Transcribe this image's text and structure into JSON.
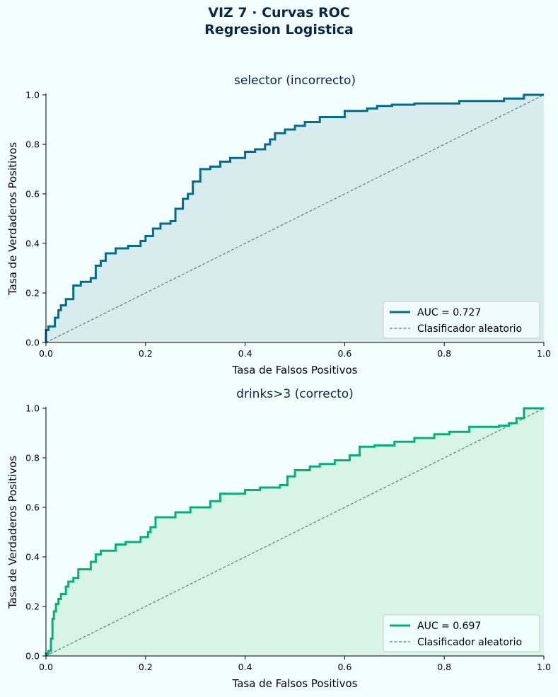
{
  "figure": {
    "title_line1": "VIZ 7 · Curvas ROC",
    "title_line2": "Regresion Logistica"
  },
  "chart_data": [
    {
      "type": "line",
      "title": "selector (incorrecto)",
      "xlabel": "Tasa de Falsos Positivos",
      "ylabel": "Tasa de Verdaderos Positivos",
      "xlim": [
        0,
        1
      ],
      "ylim": [
        0,
        1
      ],
      "xticks": [
        "0.0",
        "0.2",
        "0.4",
        "0.6",
        "0.8",
        "1.0"
      ],
      "yticks": [
        "0.0",
        "0.2",
        "0.4",
        "0.6",
        "0.8",
        "1.0"
      ],
      "color": "#006d8f",
      "fill_color": "#d9eced",
      "grid": false,
      "legend_position": "lower right",
      "series": [
        {
          "name": "AUC = 0.727",
          "style": "step",
          "x": [
            0,
            0,
            0.005,
            0.005,
            0.018,
            0.018,
            0.025,
            0.025,
            0.03,
            0.03,
            0.04,
            0.04,
            0.055,
            0.055,
            0.07,
            0.07,
            0.09,
            0.09,
            0.1,
            0.1,
            0.11,
            0.11,
            0.12,
            0.12,
            0.14,
            0.14,
            0.165,
            0.165,
            0.19,
            0.19,
            0.2,
            0.2,
            0.215,
            0.215,
            0.23,
            0.23,
            0.25,
            0.25,
            0.26,
            0.26,
            0.275,
            0.275,
            0.285,
            0.285,
            0.295,
            0.295,
            0.31,
            0.31,
            0.33,
            0.33,
            0.35,
            0.35,
            0.37,
            0.37,
            0.4,
            0.4,
            0.42,
            0.42,
            0.44,
            0.44,
            0.45,
            0.45,
            0.46,
            0.46,
            0.48,
            0.48,
            0.5,
            0.5,
            0.52,
            0.52,
            0.55,
            0.55,
            0.6,
            0.6,
            0.645,
            0.645,
            0.665,
            0.665,
            0.695,
            0.695,
            0.74,
            0.74,
            0.83,
            0.83,
            0.92,
            0.92,
            0.96,
            0.96,
            1.0
          ],
          "y": [
            0,
            0.05,
            0.05,
            0.065,
            0.065,
            0.1,
            0.1,
            0.13,
            0.13,
            0.15,
            0.15,
            0.175,
            0.175,
            0.23,
            0.23,
            0.245,
            0.245,
            0.26,
            0.26,
            0.31,
            0.31,
            0.33,
            0.33,
            0.36,
            0.36,
            0.38,
            0.38,
            0.39,
            0.39,
            0.41,
            0.41,
            0.43,
            0.43,
            0.46,
            0.46,
            0.48,
            0.48,
            0.49,
            0.49,
            0.54,
            0.54,
            0.58,
            0.58,
            0.6,
            0.6,
            0.65,
            0.65,
            0.7,
            0.7,
            0.71,
            0.71,
            0.73,
            0.73,
            0.745,
            0.745,
            0.77,
            0.77,
            0.78,
            0.78,
            0.8,
            0.8,
            0.82,
            0.82,
            0.845,
            0.845,
            0.86,
            0.86,
            0.875,
            0.875,
            0.89,
            0.89,
            0.91,
            0.91,
            0.935,
            0.935,
            0.945,
            0.945,
            0.955,
            0.955,
            0.96,
            0.96,
            0.965,
            0.965,
            0.975,
            0.975,
            0.985,
            0.985,
            1.0,
            1.0
          ]
        },
        {
          "name": "Clasificador aleatorio",
          "style": "dashed",
          "color": "#6b7777",
          "x": [
            0,
            1
          ],
          "y": [
            0,
            1
          ]
        }
      ]
    },
    {
      "type": "line",
      "title": "drinks>3 (correcto)",
      "xlabel": "Tasa de Falsos Positivos",
      "ylabel": "Tasa de Verdaderos Positivos",
      "xlim": [
        0,
        1
      ],
      "ylim": [
        0,
        1
      ],
      "xticks": [
        "0.0",
        "0.2",
        "0.4",
        "0.6",
        "0.8",
        "1.0"
      ],
      "yticks": [
        "0.0",
        "0.2",
        "0.4",
        "0.6",
        "0.8",
        "1.0"
      ],
      "color": "#00b27a",
      "fill_color": "#d8f4e7",
      "grid": false,
      "legend_position": "lower right",
      "series": [
        {
          "name": "AUC = 0.697",
          "style": "step",
          "x": [
            0,
            0,
            0.005,
            0.005,
            0.01,
            0.01,
            0.013,
            0.013,
            0.016,
            0.016,
            0.02,
            0.02,
            0.025,
            0.025,
            0.03,
            0.03,
            0.04,
            0.04,
            0.045,
            0.045,
            0.055,
            0.055,
            0.065,
            0.065,
            0.09,
            0.09,
            0.1,
            0.1,
            0.11,
            0.11,
            0.14,
            0.14,
            0.16,
            0.16,
            0.19,
            0.19,
            0.205,
            0.205,
            0.21,
            0.21,
            0.22,
            0.22,
            0.26,
            0.26,
            0.29,
            0.29,
            0.33,
            0.33,
            0.35,
            0.35,
            0.4,
            0.4,
            0.43,
            0.43,
            0.47,
            0.47,
            0.485,
            0.485,
            0.5,
            0.5,
            0.53,
            0.53,
            0.55,
            0.55,
            0.58,
            0.58,
            0.61,
            0.61,
            0.63,
            0.63,
            0.66,
            0.66,
            0.7,
            0.7,
            0.74,
            0.74,
            0.78,
            0.78,
            0.81,
            0.81,
            0.85,
            0.85,
            0.91,
            0.91,
            0.93,
            0.93,
            0.945,
            0.945,
            0.96,
            0.96,
            1.0
          ],
          "y": [
            0,
            0.01,
            0.01,
            0.02,
            0.02,
            0.07,
            0.07,
            0.15,
            0.15,
            0.18,
            0.18,
            0.21,
            0.21,
            0.23,
            0.23,
            0.25,
            0.25,
            0.28,
            0.28,
            0.3,
            0.3,
            0.315,
            0.315,
            0.35,
            0.35,
            0.38,
            0.38,
            0.41,
            0.41,
            0.425,
            0.425,
            0.45,
            0.45,
            0.46,
            0.46,
            0.48,
            0.48,
            0.5,
            0.5,
            0.52,
            0.52,
            0.56,
            0.56,
            0.58,
            0.58,
            0.6,
            0.6,
            0.625,
            0.625,
            0.655,
            0.655,
            0.67,
            0.67,
            0.68,
            0.68,
            0.69,
            0.69,
            0.725,
            0.725,
            0.75,
            0.75,
            0.765,
            0.765,
            0.775,
            0.775,
            0.79,
            0.79,
            0.81,
            0.81,
            0.845,
            0.845,
            0.85,
            0.85,
            0.865,
            0.865,
            0.88,
            0.88,
            0.895,
            0.895,
            0.905,
            0.905,
            0.925,
            0.925,
            0.93,
            0.93,
            0.94,
            0.94,
            0.96,
            0.96,
            1.0,
            1.0
          ]
        },
        {
          "name": "Clasificador aleatorio",
          "style": "dashed",
          "color": "#6b7777",
          "x": [
            0,
            1
          ],
          "y": [
            0,
            1
          ]
        }
      ]
    }
  ]
}
